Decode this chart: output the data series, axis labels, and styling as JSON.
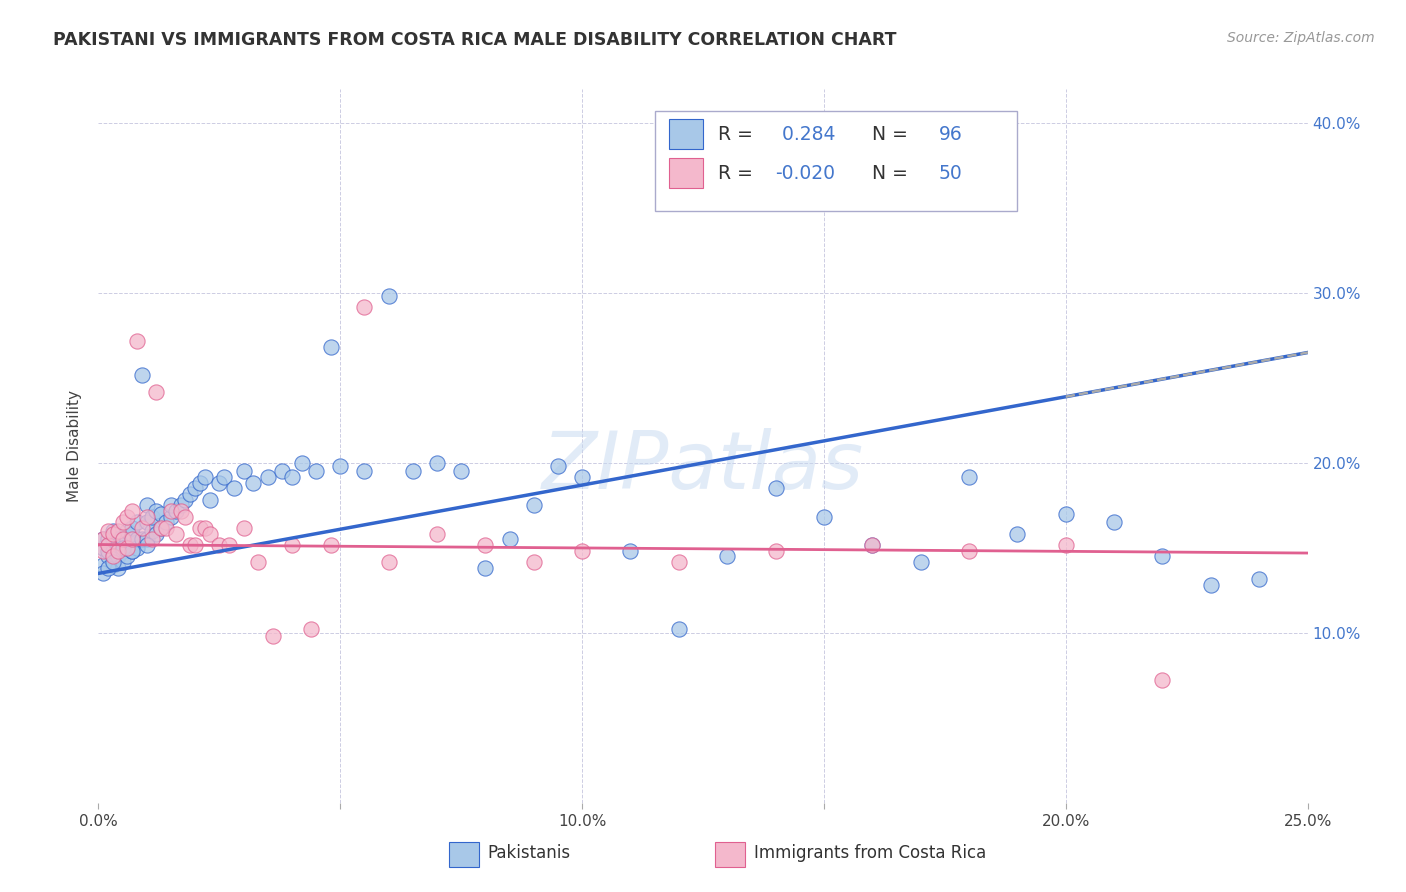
{
  "title": "PAKISTANI VS IMMIGRANTS FROM COSTA RICA MALE DISABILITY CORRELATION CHART",
  "source": "Source: ZipAtlas.com",
  "xlabel_pakistanis": "Pakistanis",
  "xlabel_costa_rica": "Immigrants from Costa Rica",
  "ylabel": "Male Disability",
  "xlim": [
    0.0,
    0.25
  ],
  "ylim": [
    0.0,
    0.42
  ],
  "R_pakistani": 0.284,
  "N_pakistani": 96,
  "R_costa_rica": -0.02,
  "N_costa_rica": 50,
  "color_pakistani": "#a8c8e8",
  "color_costa_rica": "#f4b8cc",
  "line_color_pakistani": "#3366cc",
  "line_color_costa_rica": "#e06090",
  "watermark": "ZIPatlas",
  "background_color": "#ffffff",
  "grid_color": "#c8c8e0",
  "pak_line_intercept": 0.135,
  "pak_line_slope": 0.52,
  "cr_line_intercept": 0.152,
  "cr_line_slope": -0.02,
  "pakistani_x": [
    0.001,
    0.001,
    0.001,
    0.002,
    0.002,
    0.002,
    0.002,
    0.003,
    0.003,
    0.003,
    0.003,
    0.003,
    0.004,
    0.004,
    0.004,
    0.004,
    0.004,
    0.005,
    0.005,
    0.005,
    0.005,
    0.006,
    0.006,
    0.006,
    0.006,
    0.007,
    0.007,
    0.007,
    0.007,
    0.008,
    0.008,
    0.008,
    0.009,
    0.009,
    0.01,
    0.01,
    0.01,
    0.011,
    0.011,
    0.012,
    0.012,
    0.013,
    0.013,
    0.014,
    0.015,
    0.015,
    0.016,
    0.017,
    0.018,
    0.019,
    0.02,
    0.021,
    0.022,
    0.023,
    0.025,
    0.026,
    0.028,
    0.03,
    0.032,
    0.035,
    0.038,
    0.04,
    0.042,
    0.045,
    0.048,
    0.05,
    0.055,
    0.06,
    0.065,
    0.07,
    0.075,
    0.08,
    0.085,
    0.09,
    0.095,
    0.1,
    0.11,
    0.12,
    0.13,
    0.14,
    0.15,
    0.16,
    0.17,
    0.18,
    0.19,
    0.2,
    0.21,
    0.22,
    0.23,
    0.24,
    0.001,
    0.002,
    0.003,
    0.005,
    0.007,
    0.01
  ],
  "pakistani_y": [
    0.15,
    0.155,
    0.14,
    0.145,
    0.155,
    0.148,
    0.152,
    0.155,
    0.145,
    0.16,
    0.148,
    0.14,
    0.155,
    0.15,
    0.145,
    0.138,
    0.152,
    0.155,
    0.148,
    0.142,
    0.15,
    0.15,
    0.145,
    0.155,
    0.16,
    0.155,
    0.148,
    0.158,
    0.162,
    0.15,
    0.155,
    0.165,
    0.252,
    0.155,
    0.155,
    0.165,
    0.175,
    0.16,
    0.168,
    0.158,
    0.172,
    0.162,
    0.17,
    0.165,
    0.168,
    0.175,
    0.172,
    0.175,
    0.178,
    0.182,
    0.185,
    0.188,
    0.192,
    0.178,
    0.188,
    0.192,
    0.185,
    0.195,
    0.188,
    0.192,
    0.195,
    0.192,
    0.2,
    0.195,
    0.268,
    0.198,
    0.195,
    0.298,
    0.195,
    0.2,
    0.195,
    0.138,
    0.155,
    0.175,
    0.198,
    0.192,
    0.148,
    0.102,
    0.145,
    0.185,
    0.168,
    0.152,
    0.142,
    0.192,
    0.158,
    0.17,
    0.165,
    0.145,
    0.128,
    0.132,
    0.135,
    0.138,
    0.142,
    0.15,
    0.148,
    0.152
  ],
  "costa_rica_x": [
    0.001,
    0.001,
    0.002,
    0.002,
    0.003,
    0.003,
    0.004,
    0.004,
    0.005,
    0.005,
    0.006,
    0.006,
    0.007,
    0.007,
    0.008,
    0.009,
    0.01,
    0.011,
    0.012,
    0.013,
    0.014,
    0.015,
    0.016,
    0.017,
    0.018,
    0.019,
    0.02,
    0.021,
    0.022,
    0.023,
    0.025,
    0.027,
    0.03,
    0.033,
    0.036,
    0.04,
    0.044,
    0.048,
    0.055,
    0.06,
    0.07,
    0.08,
    0.09,
    0.1,
    0.12,
    0.14,
    0.16,
    0.18,
    0.2,
    0.22
  ],
  "costa_rica_y": [
    0.155,
    0.148,
    0.152,
    0.16,
    0.145,
    0.158,
    0.16,
    0.148,
    0.155,
    0.165,
    0.15,
    0.168,
    0.155,
    0.172,
    0.272,
    0.162,
    0.168,
    0.155,
    0.242,
    0.162,
    0.162,
    0.172,
    0.158,
    0.172,
    0.168,
    0.152,
    0.152,
    0.162,
    0.162,
    0.158,
    0.152,
    0.152,
    0.162,
    0.142,
    0.098,
    0.152,
    0.102,
    0.152,
    0.292,
    0.142,
    0.158,
    0.152,
    0.142,
    0.148,
    0.142,
    0.148,
    0.152,
    0.148,
    0.152,
    0.072
  ]
}
